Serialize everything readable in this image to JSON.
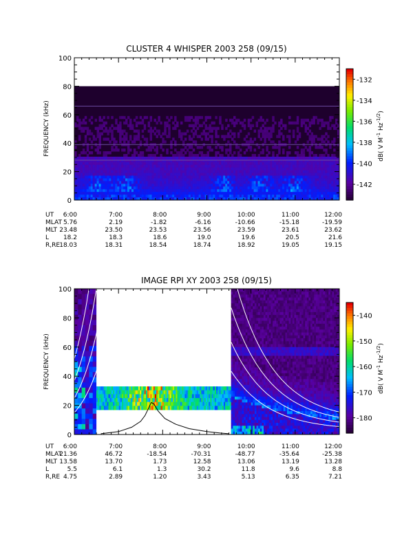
{
  "chart_data": [
    {
      "type": "heatmap",
      "title": "CLUSTER 4 WHISPER 2003 258 (09/15)",
      "ylabel": "FREQUENCY (kHz)",
      "ylim": [
        0,
        100
      ],
      "yticks": [
        "0",
        "20",
        "40",
        "60",
        "80",
        "100"
      ],
      "xlim_hours": [
        6,
        12
      ],
      "colorbar": {
        "label": "dB( V M",
        "label_sup1": "-1",
        "label_mid": " Hz",
        "label_sup2": "-1/2",
        "label_end": ")",
        "range": [
          -143.5,
          -131
        ],
        "ticks": [
          "-132",
          "-134",
          "-136",
          "-138",
          "-140",
          "-142"
        ],
        "tick_values": [
          -132,
          -134,
          -136,
          -138,
          -140,
          -142
        ]
      },
      "data_frequency_limit_khz": 80,
      "horizontal_lines_khz": [
        66,
        39,
        28
      ],
      "ephemeris": {
        "rows": [
          {
            "label": "UT",
            "values": [
              "6:00",
              "7:00",
              "8:00",
              "9:00",
              "10:00",
              "11:00",
              "12:00"
            ]
          },
          {
            "label": "MLAT",
            "values": [
              "5.76",
              "2.19",
              "-1.82",
              "-6.16",
              "-10.66",
              "-15.18",
              "-19.59"
            ]
          },
          {
            "label": "MLT",
            "values": [
              "23.48",
              "23.50",
              "23.53",
              "23.56",
              "23.59",
              "23.61",
              "23.62"
            ]
          },
          {
            "label": "L",
            "values": [
              "18.2",
              "18.3",
              "18.6",
              "19.0",
              "19.6",
              "20.5",
              "21.6"
            ]
          },
          {
            "label": "R,RE",
            "values": [
              "18.03",
              "18.31",
              "18.54",
              "18.74",
              "18.92",
              "19.05",
              "19.15"
            ]
          }
        ]
      }
    },
    {
      "type": "heatmap",
      "title": "IMAGE RPI XY 2003 258 (09/15)",
      "ylabel": "FREQUENCY (kHz)",
      "ylim": [
        0,
        100
      ],
      "yticks": [
        "0",
        "20",
        "40",
        "60",
        "80",
        "100"
      ],
      "xlim_hours": [
        6,
        12
      ],
      "colorbar": {
        "label": "dB( V M",
        "label_sup1": "-1",
        "label_mid": " Hz",
        "label_sup2": "-1/2",
        "label_end": ")",
        "range": [
          -186,
          -135
        ],
        "ticks": [
          "-140",
          "-150",
          "-160",
          "-170",
          "-180"
        ],
        "tick_values": [
          -140,
          -150,
          -160,
          -170,
          -180
        ]
      },
      "data_gaps_hours": [
        [
          6.5,
          9.55
        ]
      ],
      "mid_band_khz": [
        17,
        33
      ],
      "plasma_frequency_curve": {
        "x_hours": [
          6.6,
          7.0,
          7.3,
          7.5,
          7.6,
          7.68,
          7.74,
          7.8,
          7.9,
          8.05,
          8.3,
          8.6,
          9.0,
          9.3,
          9.5
        ],
        "y_khz": [
          0.5,
          2,
          5,
          9,
          13,
          18,
          22,
          21,
          16,
          11,
          7,
          4,
          2,
          1,
          0.5
        ]
      },
      "ephemeris": {
        "rows": [
          {
            "label": "UT",
            "values": [
              "6:00",
              "7:00",
              "8:00",
              "9:00",
              "10:00",
              "11:00",
              "12:00"
            ]
          },
          {
            "label": "MLAT",
            "values": [
              "21.36",
              "46.72",
              "-18.54",
              "-70.31",
              "-48.77",
              "-35.64",
              "-25.38"
            ]
          },
          {
            "label": "MLT",
            "values": [
              "13.58",
              "13.70",
              "1.73",
              "12.58",
              "13.06",
              "13.19",
              "13.28"
            ]
          },
          {
            "label": "L",
            "values": [
              "5.5",
              "6.1",
              "1.3",
              "30.2",
              "11.8",
              "9.6",
              "8.8"
            ]
          },
          {
            "label": "R,RE",
            "values": [
              "4.75",
              "2.89",
              "1.20",
              "3.43",
              "5.13",
              "6.35",
              "7.21"
            ]
          }
        ]
      }
    }
  ]
}
